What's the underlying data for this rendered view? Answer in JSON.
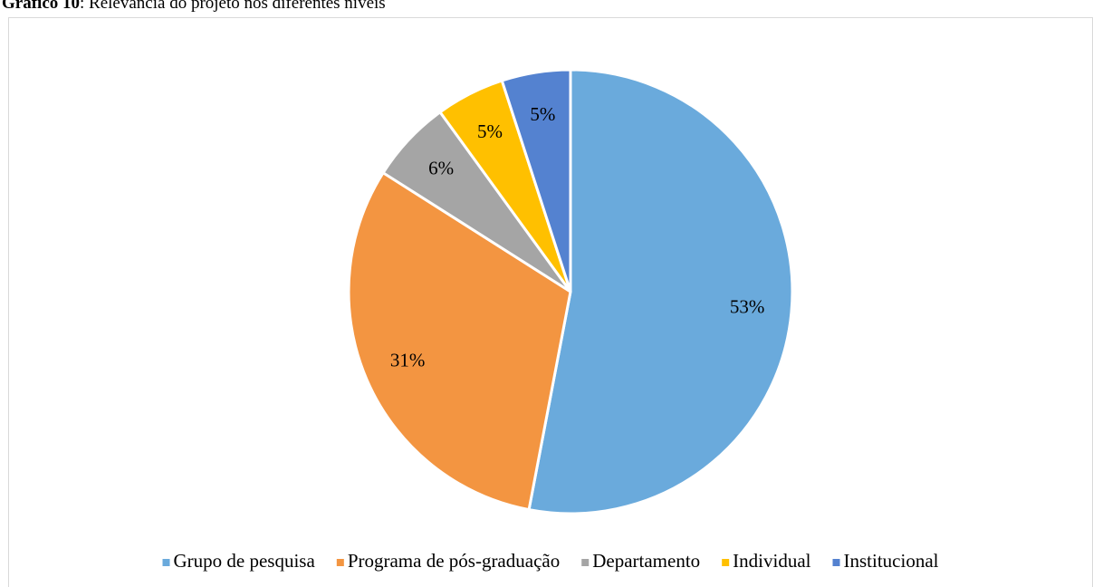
{
  "chart_data": {
    "type": "pie",
    "title_prefix": "Gráfico 10",
    "title": ": Relevância do projeto nos diferentes níveis",
    "categories": [
      "Grupo de pesquisa",
      "Programa de pós-graduação",
      "Departamento",
      "Individual",
      "Institucional"
    ],
    "values": [
      53,
      31,
      6,
      5,
      5
    ],
    "value_labels": [
      "53%",
      "31%",
      "6%",
      "5%",
      "5%"
    ],
    "colors": [
      "#6aaadc",
      "#f39541",
      "#a5a5a5",
      "#ffc000",
      "#5482d0"
    ],
    "legend": "bottom"
  }
}
